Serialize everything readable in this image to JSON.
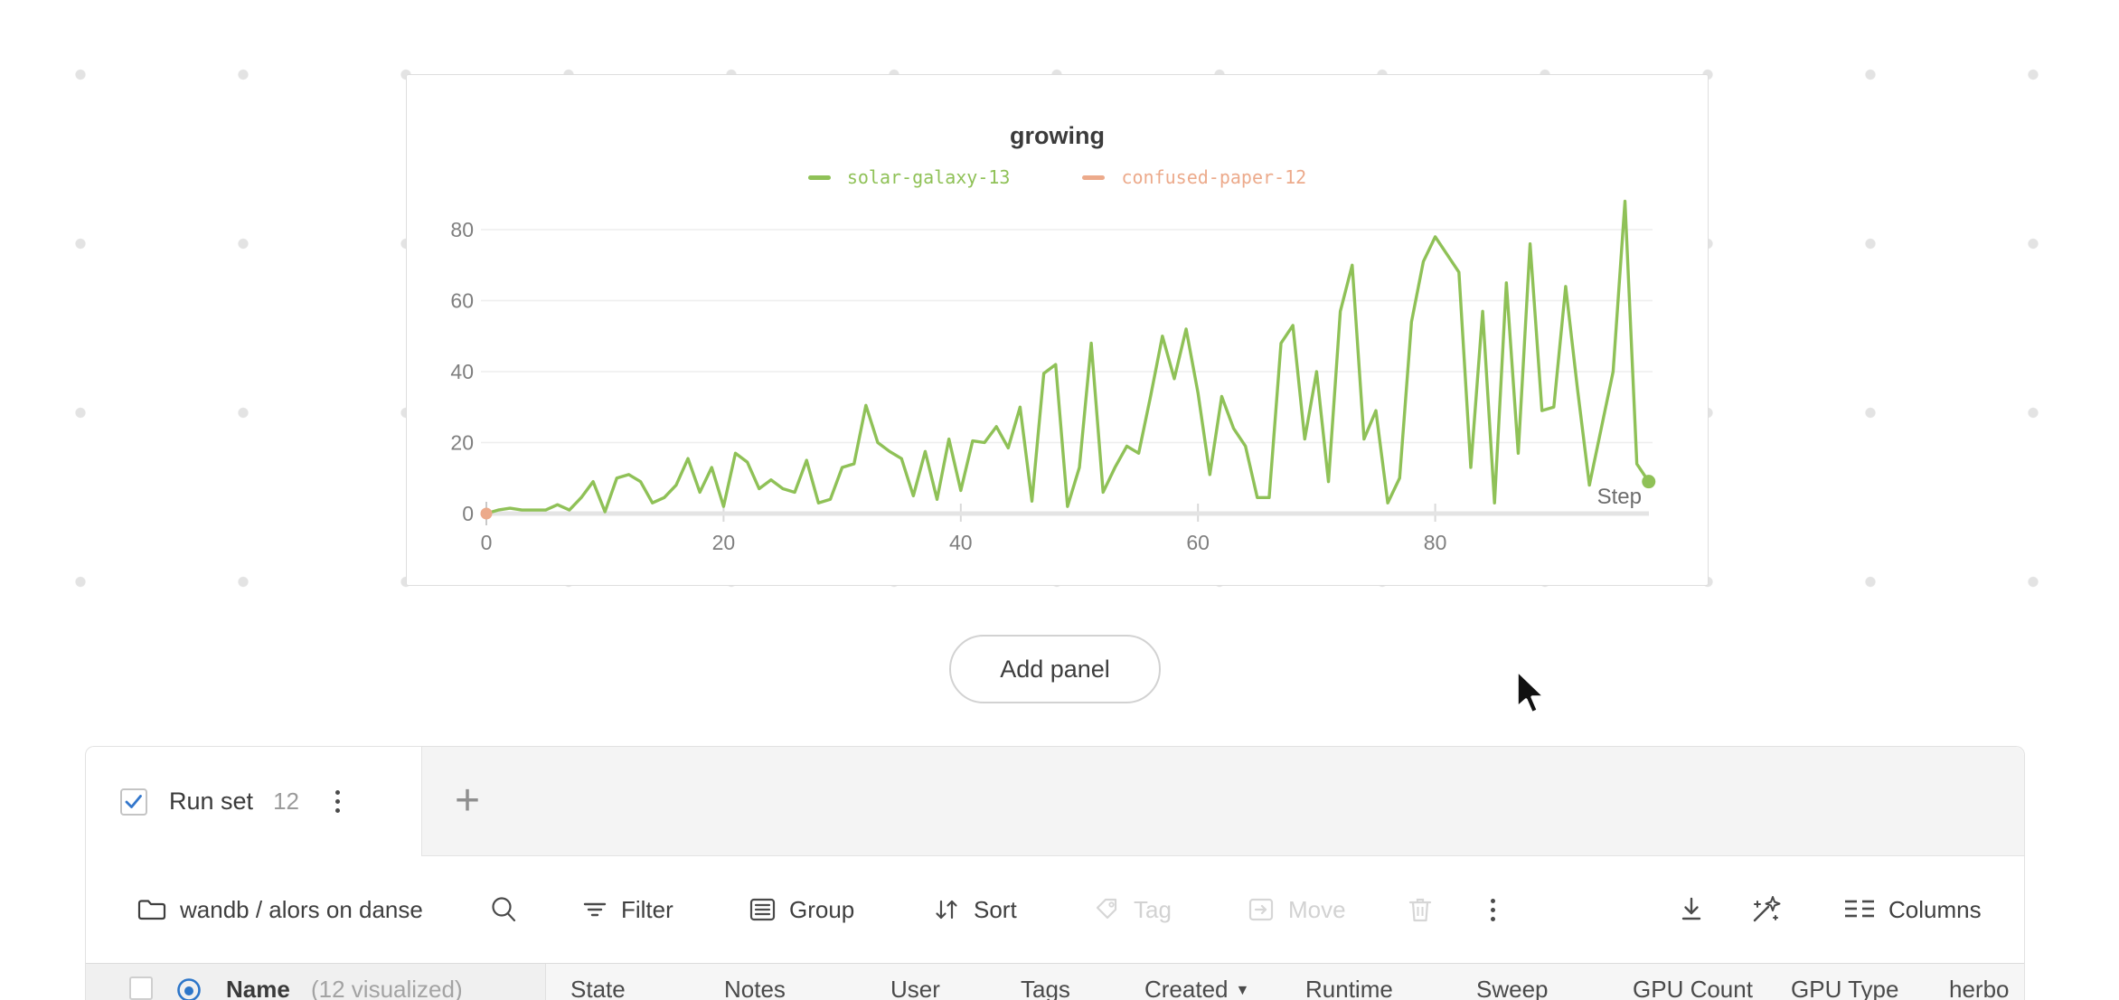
{
  "workspace": {
    "add_panel_label": "Add panel"
  },
  "chart_data": {
    "type": "line",
    "title": "growing",
    "xlabel": "Step",
    "ylabel": "",
    "xlim": [
      0,
      98
    ],
    "ylim": [
      0,
      90
    ],
    "x_ticks": [
      0,
      20,
      40,
      60,
      80
    ],
    "y_ticks": [
      0,
      20,
      40,
      60,
      80
    ],
    "grid": "horizontal",
    "legend_position": "top-center",
    "series": [
      {
        "name": "solar-galaxy-13",
        "color": "#8fc157",
        "x_step": 1,
        "end_marker": true,
        "values": [
          0,
          1,
          1.5,
          1,
          1,
          1,
          2.5,
          1,
          4.5,
          9,
          0.5,
          10,
          11,
          9,
          3,
          4.5,
          8,
          15.5,
          6,
          13,
          2,
          17,
          14.5,
          7,
          9.5,
          7,
          6,
          15,
          3,
          4,
          13,
          14,
          30.5,
          20,
          17.5,
          15.5,
          5,
          17.5,
          4,
          21,
          6.5,
          20.5,
          20,
          24.5,
          18.5,
          30,
          3.5,
          39.5,
          42,
          2,
          13,
          48,
          6,
          13,
          19,
          17,
          33,
          50,
          38,
          52,
          34,
          11,
          33,
          24,
          19,
          4.5,
          4.5,
          48,
          53,
          21,
          40,
          9,
          57,
          70,
          21,
          29,
          3,
          10,
          54,
          71,
          78,
          73,
          68,
          13,
          57,
          3,
          65,
          17,
          76,
          29,
          30,
          64,
          35,
          8,
          24,
          40,
          88,
          14,
          9
        ]
      },
      {
        "name": "confused-paper-12",
        "color": "#ecaa8b",
        "points": [
          {
            "x": 0,
            "y": 0
          }
        ]
      }
    ]
  },
  "runset": {
    "tab": {
      "label": "Run set",
      "count": "12",
      "checked": true
    },
    "new_tab_label": "+",
    "toolbar": {
      "project": "wandb / alors on danse",
      "filter_label": "Filter",
      "group_label": "Group",
      "sort_label": "Sort",
      "tag_label": "Tag",
      "move_label": "Move",
      "columns_label": "Columns"
    },
    "table": {
      "name_column": "Name",
      "name_annotation": "(12 visualized)",
      "columns": [
        "State",
        "Notes",
        "User",
        "Tags",
        "Created",
        "Runtime",
        "Sweep",
        "GPU Count",
        "GPU Type",
        "herbo"
      ],
      "sorted_column": "Created",
      "sort_indicator": "▼"
    }
  }
}
